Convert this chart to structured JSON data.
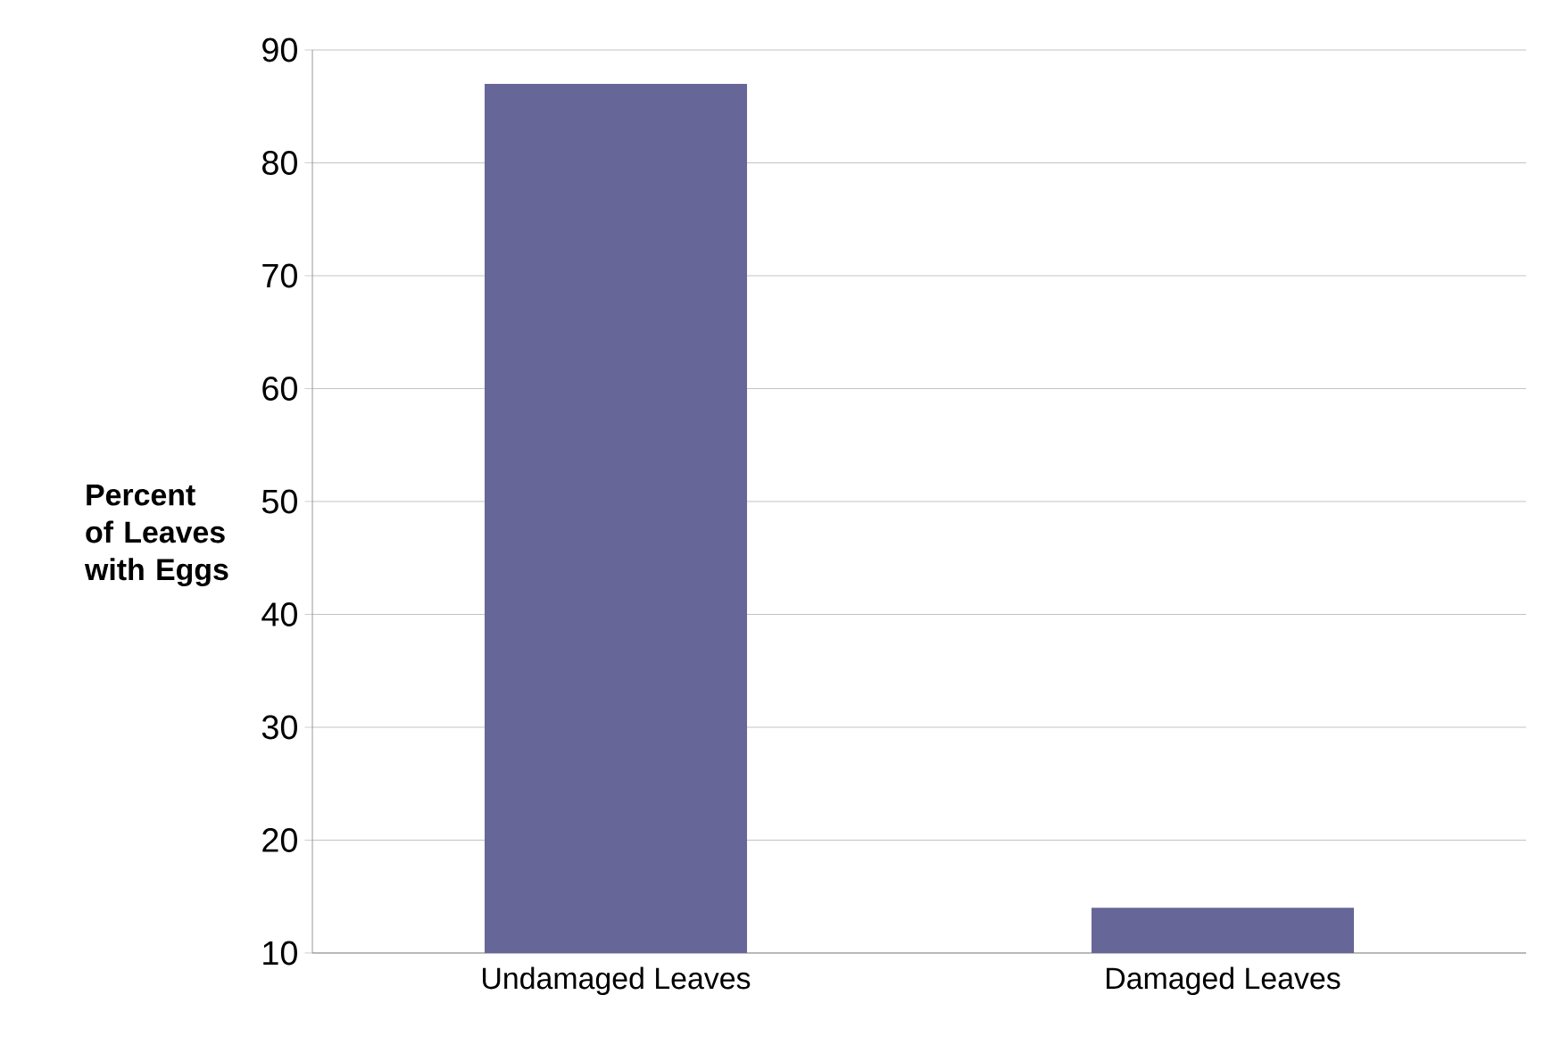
{
  "chart_data": {
    "type": "bar",
    "ylabel": "Percent of Leaves with Eggs",
    "categories": [
      "Undamaged Leaves",
      "Damaged Leaves"
    ],
    "values": [
      87,
      14
    ],
    "color": "#666699",
    "ylim": [
      10,
      90
    ],
    "yticks": [
      10,
      20,
      30,
      40,
      50,
      60,
      70,
      80,
      90
    ],
    "grid": "y"
  }
}
